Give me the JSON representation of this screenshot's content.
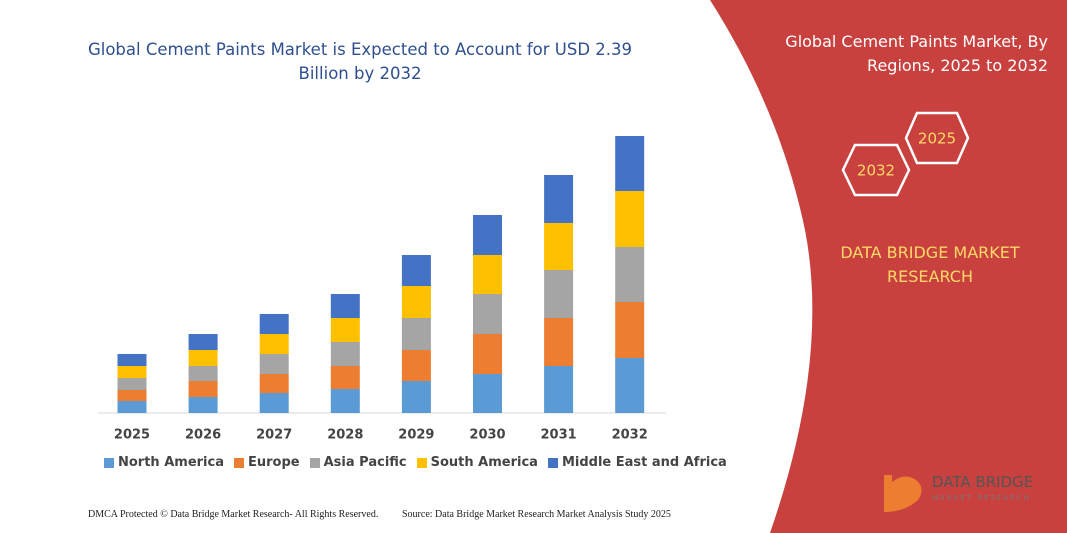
{
  "chart_data": {
    "type": "stacked-bar",
    "title": "Global Cement Paints Market is Expected to Account for USD 2.39 Billion by 2032",
    "categories": [
      "2025",
      "2026",
      "2027",
      "2028",
      "2029",
      "2030",
      "2031",
      "2032"
    ],
    "series": [
      {
        "name": "North America",
        "color": "#5b9bd5",
        "values": [
          12,
          16,
          20,
          24,
          32,
          39,
          47,
          55
        ]
      },
      {
        "name": "Europe",
        "color": "#ed7d31",
        "values": [
          11,
          16,
          19,
          23,
          31,
          40,
          48,
          56
        ]
      },
      {
        "name": "Asia Pacific",
        "color": "#a5a5a5",
        "values": [
          12,
          15,
          20,
          24,
          32,
          40,
          48,
          55
        ]
      },
      {
        "name": "South America",
        "color": "#ffc000",
        "values": [
          12,
          16,
          20,
          24,
          32,
          39,
          47,
          56
        ]
      },
      {
        "name": "Middle East and Africa",
        "color": "#4472c4",
        "values": [
          12,
          16,
          20,
          24,
          31,
          40,
          48,
          55
        ]
      }
    ]
  },
  "panel": {
    "title": "Global Cement Paints Market, By Regions, 2025 to 2032",
    "hexagons": [
      "2025",
      "2032"
    ],
    "brand": "DATA BRIDGE MARKET RESEARCH"
  },
  "logo": {
    "name": "DATA BRIDGE",
    "tagline": "MARKET RESEARCH"
  },
  "footer": {
    "left": "DMCA Protected © Data Bridge Market Research- All Rights Reserved.",
    "right": "Source: Data Bridge Market Research Market Analysis Study 2025"
  }
}
